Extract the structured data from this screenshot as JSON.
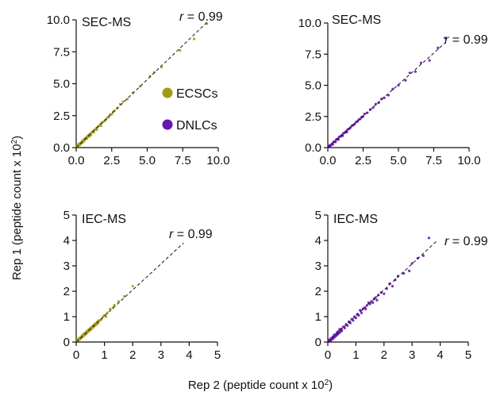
{
  "colors": {
    "ecsc": "#a39a12",
    "dnlc": "#6a12b4",
    "axis": "#111111"
  },
  "figure": {
    "ylabel": "Rep 1 (peptide count x 10",
    "ylabel_sup": "2",
    "ylabel_close": ")",
    "xlabel": "Rep 2 (peptide count x 10",
    "xlabel_sup": "2",
    "xlabel_close": ")"
  },
  "legend": [
    {
      "label": "ECSCs",
      "color": "#a39a12"
    },
    {
      "label": "DNLCs",
      "color": "#6a12b4"
    }
  ],
  "chart_data": [
    {
      "type": "scatter",
      "panel": "top-left",
      "label": "SEC-MS",
      "r_prefix": "r",
      "r_value": "= 0.99",
      "color": "#a39a12",
      "xlim": [
        0,
        10
      ],
      "ylim": [
        0,
        10
      ],
      "xticks": [
        "0.0",
        "2.5",
        "5.0",
        "7.5",
        "10.0"
      ],
      "xtick_values": [
        0,
        2.5,
        5,
        7.5,
        10
      ],
      "yticks": [
        "0.0",
        "2.5",
        "5.0",
        "7.5",
        "10.0"
      ],
      "ytick_values": [
        0,
        2.5,
        5,
        7.5,
        10
      ],
      "fit": {
        "x0": 0,
        "y0": 0,
        "x1": 9.2,
        "y1": 9.8
      },
      "points": [
        [
          0.05,
          0.1
        ],
        [
          0.1,
          0.2
        ],
        [
          0.15,
          0.1
        ],
        [
          0.2,
          0.3
        ],
        [
          0.25,
          0.2
        ],
        [
          0.3,
          0.35
        ],
        [
          0.35,
          0.3
        ],
        [
          0.4,
          0.5
        ],
        [
          0.45,
          0.4
        ],
        [
          0.5,
          0.6
        ],
        [
          0.55,
          0.5
        ],
        [
          0.6,
          0.7
        ],
        [
          0.65,
          0.65
        ],
        [
          0.7,
          0.8
        ],
        [
          0.75,
          0.7
        ],
        [
          0.8,
          0.9
        ],
        [
          0.85,
          0.85
        ],
        [
          0.9,
          1.0
        ],
        [
          0.95,
          0.9
        ],
        [
          1.0,
          1.1
        ],
        [
          1.05,
          1.0
        ],
        [
          1.1,
          1.2
        ],
        [
          1.2,
          1.3
        ],
        [
          1.25,
          1.2
        ],
        [
          1.3,
          1.4
        ],
        [
          1.4,
          1.5
        ],
        [
          1.45,
          1.4
        ],
        [
          1.5,
          1.6
        ],
        [
          1.6,
          1.7
        ],
        [
          1.7,
          1.8
        ],
        [
          1.75,
          1.7
        ],
        [
          1.8,
          1.95
        ],
        [
          1.9,
          2.0
        ],
        [
          2.0,
          2.1
        ],
        [
          2.1,
          2.2
        ],
        [
          2.2,
          2.35
        ],
        [
          2.3,
          2.4
        ],
        [
          2.4,
          2.6
        ],
        [
          2.5,
          2.6
        ],
        [
          2.6,
          2.8
        ],
        [
          2.7,
          2.9
        ],
        [
          2.9,
          3.1
        ],
        [
          3.1,
          3.4
        ],
        [
          3.3,
          3.6
        ],
        [
          3.6,
          3.8
        ],
        [
          4.0,
          4.3
        ],
        [
          4.5,
          4.8
        ],
        [
          5.2,
          5.6
        ],
        [
          5.5,
          5.9
        ],
        [
          6.0,
          6.3
        ],
        [
          7.3,
          7.6
        ],
        [
          8.3,
          8.5
        ],
        [
          9.2,
          9.7
        ]
      ]
    },
    {
      "type": "scatter",
      "panel": "top-right",
      "label": "SEC-MS",
      "r_prefix": "r",
      "r_value": "= 0.99",
      "color": "#6a12b4",
      "xlim": [
        0,
        10
      ],
      "ylim": [
        0,
        10
      ],
      "xticks": [
        "0.0",
        "2.5",
        "5.0",
        "7.5",
        "10.0"
      ],
      "xtick_values": [
        0,
        2.5,
        5,
        7.5,
        10
      ],
      "yticks": [
        "0.0",
        "2.5",
        "5.0",
        "7.5",
        "10.0"
      ],
      "ytick_values": [
        0,
        2.5,
        5,
        7.5,
        10
      ],
      "fit": {
        "x0": 0,
        "y0": 0,
        "x1": 8.3,
        "y1": 8.4
      },
      "points": [
        [
          0.05,
          0.1
        ],
        [
          0.1,
          0.05
        ],
        [
          0.15,
          0.2
        ],
        [
          0.2,
          0.15
        ],
        [
          0.3,
          0.3
        ],
        [
          0.35,
          0.25
        ],
        [
          0.4,
          0.45
        ],
        [
          0.5,
          0.5
        ],
        [
          0.55,
          0.45
        ],
        [
          0.6,
          0.65
        ],
        [
          0.7,
          0.7
        ],
        [
          0.75,
          0.65
        ],
        [
          0.8,
          0.85
        ],
        [
          0.9,
          0.9
        ],
        [
          1.0,
          1.0
        ],
        [
          1.05,
          0.95
        ],
        [
          1.1,
          1.15
        ],
        [
          1.2,
          1.2
        ],
        [
          1.3,
          1.3
        ],
        [
          1.35,
          1.25
        ],
        [
          1.4,
          1.45
        ],
        [
          1.5,
          1.5
        ],
        [
          1.6,
          1.6
        ],
        [
          1.7,
          1.75
        ],
        [
          1.8,
          1.8
        ],
        [
          1.9,
          1.9
        ],
        [
          2.0,
          2.05
        ],
        [
          2.1,
          2.1
        ],
        [
          2.2,
          2.25
        ],
        [
          2.3,
          2.3
        ],
        [
          2.4,
          2.45
        ],
        [
          2.5,
          2.5
        ],
        [
          2.6,
          2.7
        ],
        [
          2.8,
          2.8
        ],
        [
          3.0,
          3.05
        ],
        [
          3.2,
          3.2
        ],
        [
          3.4,
          3.5
        ],
        [
          3.6,
          3.6
        ],
        [
          3.8,
          3.9
        ],
        [
          4.0,
          4.0
        ],
        [
          4.3,
          4.2
        ],
        [
          4.6,
          4.7
        ],
        [
          5.0,
          5.0
        ],
        [
          5.5,
          5.4
        ],
        [
          5.8,
          6.0
        ],
        [
          6.2,
          6.1
        ],
        [
          6.6,
          6.8
        ],
        [
          7.2,
          7.0
        ],
        [
          7.8,
          8.0
        ],
        [
          8.3,
          8.8
        ]
      ]
    },
    {
      "type": "scatter",
      "panel": "bottom-left",
      "label": "IEC-MS",
      "r_prefix": "r",
      "r_value": "= 0.99",
      "color": "#a39a12",
      "xlim": [
        0,
        5
      ],
      "ylim": [
        0,
        5
      ],
      "xticks": [
        "0",
        "1",
        "2",
        "3",
        "4",
        "5"
      ],
      "xtick_values": [
        0,
        1,
        2,
        3,
        4,
        5
      ],
      "yticks": [
        "0",
        "1",
        "2",
        "3",
        "4",
        "5"
      ],
      "ytick_values": [
        0,
        1,
        2,
        3,
        4,
        5
      ],
      "fit": {
        "x0": 0,
        "y0": 0,
        "x1": 3.8,
        "y1": 3.9
      },
      "points": [
        [
          0.03,
          0.05
        ],
        [
          0.05,
          0.1
        ],
        [
          0.08,
          0.06
        ],
        [
          0.1,
          0.15
        ],
        [
          0.12,
          0.1
        ],
        [
          0.15,
          0.18
        ],
        [
          0.18,
          0.15
        ],
        [
          0.2,
          0.25
        ],
        [
          0.22,
          0.2
        ],
        [
          0.25,
          0.3
        ],
        [
          0.28,
          0.25
        ],
        [
          0.3,
          0.35
        ],
        [
          0.33,
          0.3
        ],
        [
          0.35,
          0.4
        ],
        [
          0.38,
          0.35
        ],
        [
          0.4,
          0.45
        ],
        [
          0.42,
          0.4
        ],
        [
          0.45,
          0.5
        ],
        [
          0.48,
          0.45
        ],
        [
          0.5,
          0.55
        ],
        [
          0.53,
          0.5
        ],
        [
          0.55,
          0.6
        ],
        [
          0.58,
          0.56
        ],
        [
          0.6,
          0.65
        ],
        [
          0.63,
          0.6
        ],
        [
          0.65,
          0.7
        ],
        [
          0.68,
          0.66
        ],
        [
          0.7,
          0.75
        ],
        [
          0.73,
          0.7
        ],
        [
          0.75,
          0.8
        ],
        [
          0.78,
          0.75
        ],
        [
          0.8,
          0.85
        ],
        [
          0.85,
          0.85
        ],
        [
          0.9,
          0.9
        ],
        [
          0.95,
          1.0
        ],
        [
          1.0,
          1.05
        ],
        [
          1.05,
          1.0
        ],
        [
          1.1,
          1.15
        ],
        [
          1.2,
          1.3
        ],
        [
          1.3,
          1.35
        ],
        [
          1.35,
          1.45
        ],
        [
          1.5,
          1.6
        ],
        [
          1.7,
          1.8
        ],
        [
          2.0,
          2.2
        ]
      ]
    },
    {
      "type": "scatter",
      "panel": "bottom-right",
      "label": "IEC-MS",
      "r_prefix": "r",
      "r_value": "= 0.99",
      "color": "#6a12b4",
      "xlim": [
        0,
        5
      ],
      "ylim": [
        0,
        5
      ],
      "xticks": [
        "0",
        "1",
        "2",
        "3",
        "4",
        "5"
      ],
      "xtick_values": [
        0,
        1,
        2,
        3,
        4,
        5
      ],
      "yticks": [
        "0",
        "1",
        "2",
        "3",
        "4",
        "5"
      ],
      "ytick_values": [
        0,
        1,
        2,
        3,
        4,
        5
      ],
      "fit": {
        "x0": 0,
        "y0": 0,
        "x1": 3.9,
        "y1": 4.0
      },
      "points": [
        [
          0.03,
          0.05
        ],
        [
          0.05,
          0.02
        ],
        [
          0.07,
          0.1
        ],
        [
          0.1,
          0.06
        ],
        [
          0.12,
          0.15
        ],
        [
          0.15,
          0.1
        ],
        [
          0.18,
          0.2
        ],
        [
          0.2,
          0.15
        ],
        [
          0.22,
          0.28
        ],
        [
          0.25,
          0.2
        ],
        [
          0.28,
          0.3
        ],
        [
          0.3,
          0.25
        ],
        [
          0.33,
          0.38
        ],
        [
          0.35,
          0.3
        ],
        [
          0.38,
          0.42
        ],
        [
          0.4,
          0.35
        ],
        [
          0.42,
          0.5
        ],
        [
          0.45,
          0.4
        ],
        [
          0.48,
          0.52
        ],
        [
          0.5,
          0.45
        ],
        [
          0.55,
          0.6
        ],
        [
          0.6,
          0.55
        ],
        [
          0.65,
          0.7
        ],
        [
          0.7,
          0.65
        ],
        [
          0.75,
          0.8
        ],
        [
          0.8,
          0.75
        ],
        [
          0.85,
          0.9
        ],
        [
          0.9,
          0.85
        ],
        [
          0.95,
          1.0
        ],
        [
          1.0,
          0.95
        ],
        [
          1.05,
          1.1
        ],
        [
          1.1,
          1.05
        ],
        [
          1.15,
          1.25
        ],
        [
          1.2,
          1.15
        ],
        [
          1.25,
          1.3
        ],
        [
          1.3,
          1.35
        ],
        [
          1.35,
          1.3
        ],
        [
          1.4,
          1.45
        ],
        [
          1.45,
          1.55
        ],
        [
          1.5,
          1.5
        ],
        [
          1.55,
          1.6
        ],
        [
          1.6,
          1.55
        ],
        [
          1.65,
          1.7
        ],
        [
          1.7,
          1.75
        ],
        [
          1.75,
          1.65
        ],
        [
          1.8,
          1.85
        ],
        [
          1.9,
          1.95
        ],
        [
          2.0,
          1.9
        ],
        [
          2.1,
          2.1
        ],
        [
          2.2,
          2.3
        ],
        [
          2.3,
          2.2
        ],
        [
          2.4,
          2.45
        ],
        [
          2.5,
          2.6
        ],
        [
          2.7,
          2.7
        ],
        [
          2.9,
          2.8
        ],
        [
          3.0,
          3.1
        ],
        [
          3.2,
          3.3
        ],
        [
          3.4,
          3.4
        ],
        [
          3.6,
          4.1
        ]
      ]
    }
  ]
}
